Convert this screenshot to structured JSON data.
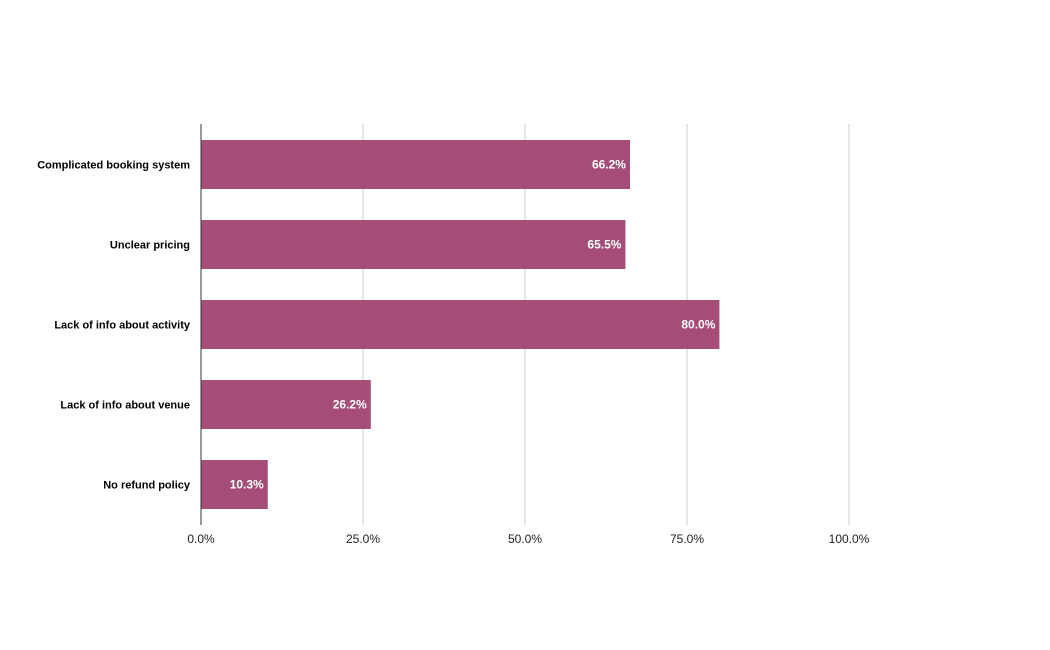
{
  "chart_data": {
    "type": "bar",
    "orientation": "horizontal",
    "categories": [
      "Complicated booking system",
      "Unclear pricing",
      "Lack of info about activity",
      "Lack of info about venue",
      "No refund policy"
    ],
    "values": [
      66.2,
      65.5,
      80.0,
      26.2,
      10.3
    ],
    "data_labels": [
      "66.2%",
      "65.5%",
      "80.0%",
      "26.2%",
      "10.3%"
    ],
    "xlim": [
      0,
      100
    ],
    "x_ticks": [
      0,
      25,
      50,
      75,
      100
    ],
    "x_tick_labels": [
      "0.0%",
      "25.0%",
      "50.0%",
      "75.0%",
      "100.0%"
    ],
    "grid": "vertical",
    "legend": "none",
    "bar_color": "#a54d77"
  }
}
